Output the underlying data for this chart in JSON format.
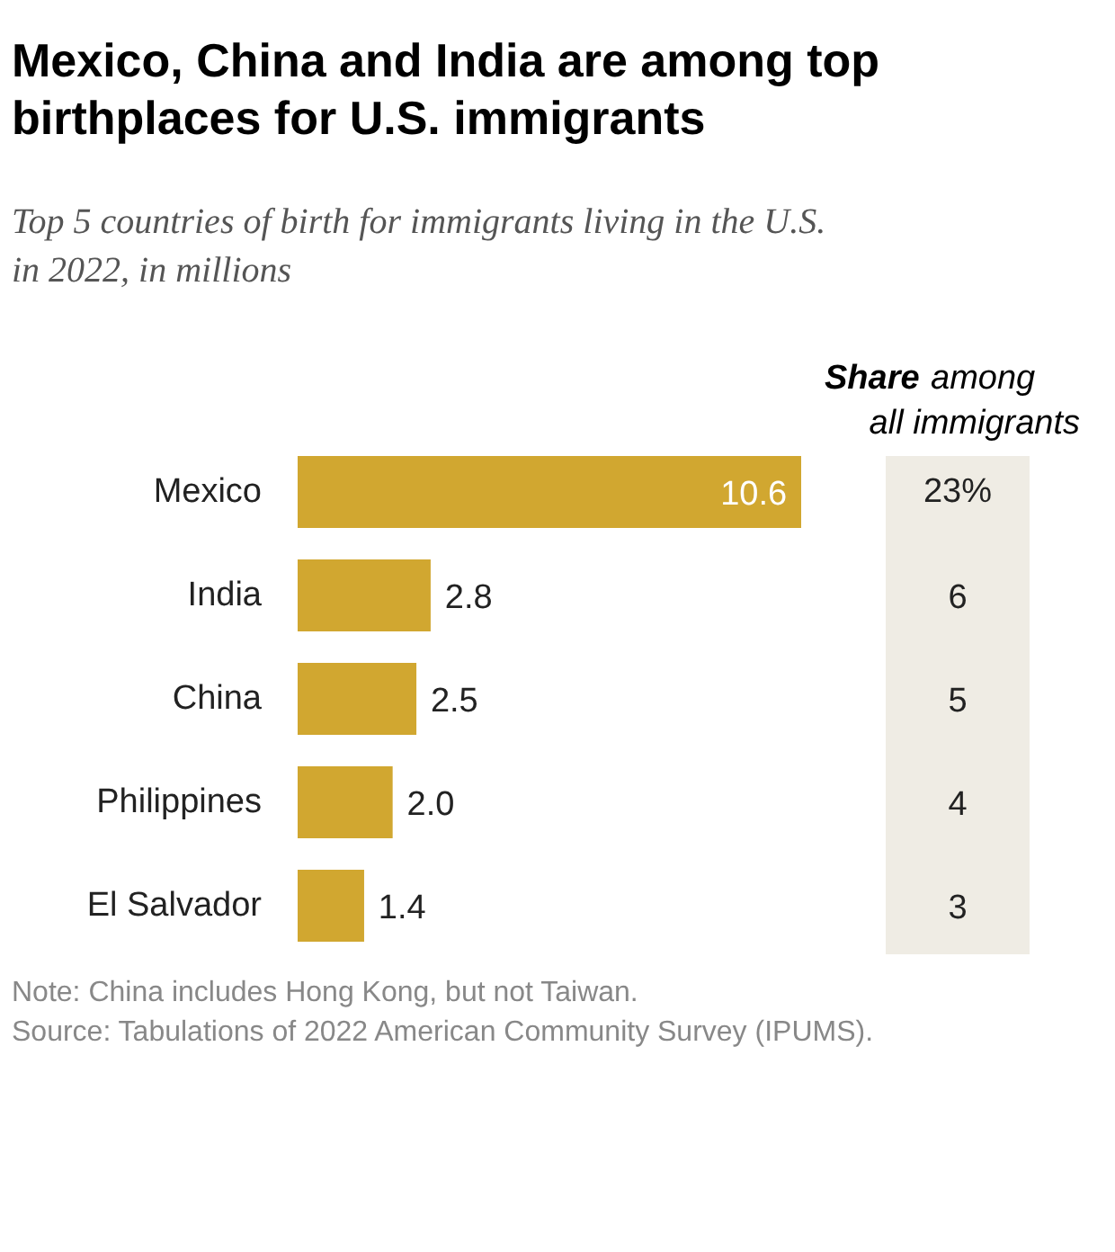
{
  "chart_data": {
    "type": "bar",
    "orientation": "horizontal",
    "title": "Mexico, China and India are among top birthplaces for U.S. immigrants",
    "subtitle": "Top 5 countries of birth for immigrants living in the U.S. in 2022, in millions",
    "categories": [
      "Mexico",
      "India",
      "China",
      "Philippines",
      "El Salvador"
    ],
    "values": [
      10.6,
      2.8,
      2.5,
      2.0,
      1.4
    ],
    "color": "#d1a730",
    "value_labels": [
      "10.6",
      "2.8",
      "2.5",
      "2.0",
      "1.4"
    ],
    "annotations": [
      "Share among all immigrants",
      "23%",
      "6",
      "5",
      "4",
      "3",
      "Note: China includes Hong Kong, but not Taiwan.",
      "Source: Tabulations of 2022 American Community Survey (IPUMS)."
    ]
  }
}
